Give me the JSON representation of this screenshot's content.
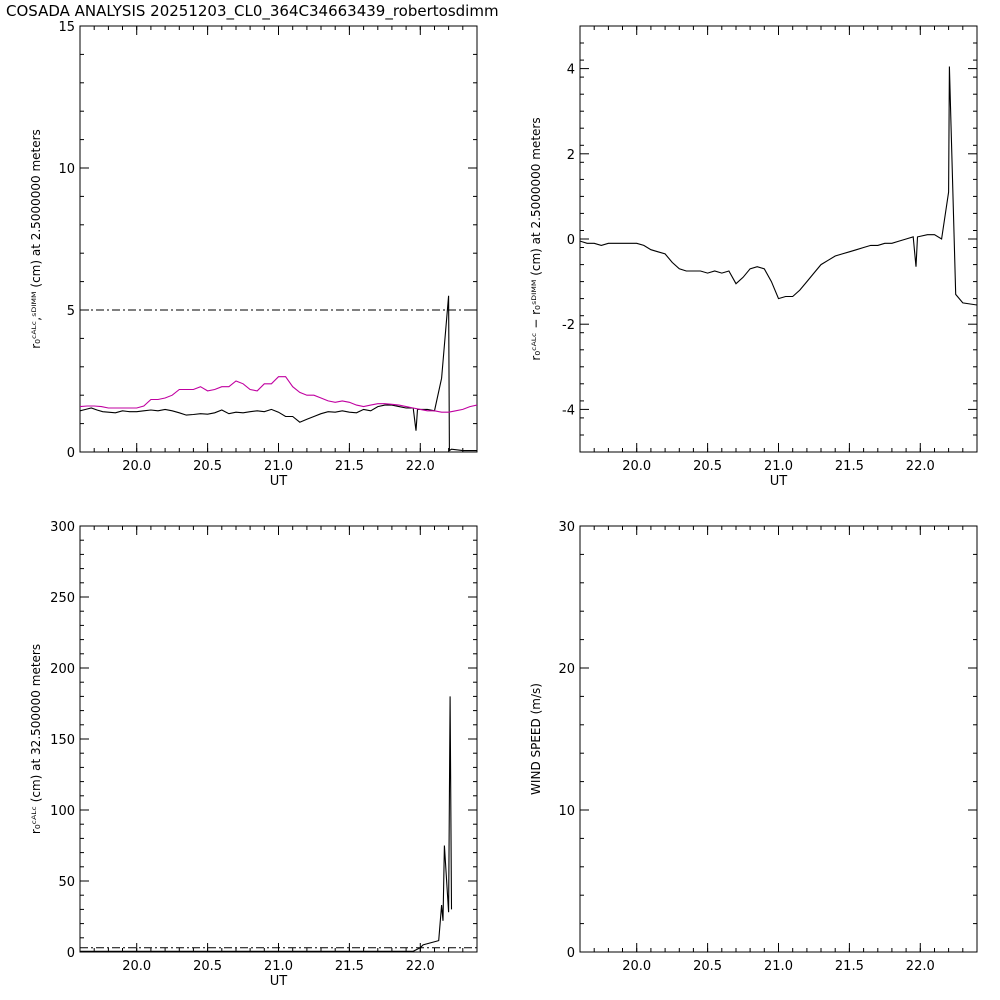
{
  "title": "COSADA ANALYSIS  20251203_CL0_364C34663439_robertosdimm",
  "chart_data": [
    {
      "type": "line",
      "xlabel": "UT",
      "ylabel": "r₀ᶜᴬᴸᶜ,ˢᴰᴵᴹᴹ (cm)  at  2.5000000 meters",
      "xlim": [
        19.6,
        22.4
      ],
      "ylim": [
        0,
        15
      ],
      "xticks": [
        "20.0",
        "20.5",
        "21.0",
        "21.5",
        "22.0"
      ],
      "yticks": [
        "0",
        "5",
        "10",
        "15"
      ],
      "reference_line": {
        "y": 5,
        "style": "dash-dot"
      },
      "series": [
        {
          "color": "#000000",
          "x": [
            19.6,
            19.64,
            19.68,
            19.72,
            19.76,
            19.8,
            19.85,
            19.9,
            19.95,
            20.0,
            20.05,
            20.1,
            20.15,
            20.2,
            20.25,
            20.3,
            20.35,
            20.4,
            20.45,
            20.5,
            20.55,
            20.6,
            20.65,
            20.7,
            20.75,
            20.8,
            20.85,
            20.9,
            20.95,
            21.0,
            21.05,
            21.1,
            21.15,
            21.2,
            21.25,
            21.3,
            21.35,
            21.4,
            21.45,
            21.5,
            21.55,
            21.6,
            21.65,
            21.7,
            21.75,
            21.8,
            21.85,
            21.9,
            21.95,
            21.97,
            21.98,
            22.05,
            22.1,
            22.15,
            22.2,
            22.205,
            22.22,
            22.3,
            22.4
          ],
          "y": [
            1.45,
            1.5,
            1.55,
            1.48,
            1.42,
            1.4,
            1.38,
            1.45,
            1.42,
            1.42,
            1.45,
            1.48,
            1.45,
            1.5,
            1.45,
            1.38,
            1.3,
            1.32,
            1.35,
            1.33,
            1.38,
            1.48,
            1.35,
            1.4,
            1.38,
            1.42,
            1.45,
            1.42,
            1.5,
            1.4,
            1.25,
            1.25,
            1.05,
            1.15,
            1.25,
            1.35,
            1.42,
            1.4,
            1.45,
            1.4,
            1.38,
            1.5,
            1.45,
            1.6,
            1.65,
            1.65,
            1.6,
            1.55,
            1.55,
            0.75,
            1.5,
            1.5,
            1.45,
            2.6,
            5.5,
            0.05,
            0.1,
            0.05,
            0.05
          ]
        },
        {
          "color": "#c000a0",
          "x": [
            19.6,
            19.65,
            19.7,
            19.75,
            19.8,
            19.85,
            19.9,
            19.95,
            20.0,
            20.05,
            20.1,
            20.15,
            20.2,
            20.25,
            20.3,
            20.35,
            20.4,
            20.45,
            20.5,
            20.55,
            20.6,
            20.65,
            20.7,
            20.75,
            20.8,
            20.85,
            20.9,
            20.95,
            21.0,
            21.05,
            21.1,
            21.15,
            21.2,
            21.25,
            21.3,
            21.35,
            21.4,
            21.45,
            21.5,
            21.55,
            21.6,
            21.65,
            21.7,
            21.75,
            21.8,
            21.85,
            21.9,
            21.95,
            22.0,
            22.05,
            22.1,
            22.15,
            22.2,
            22.25,
            22.3,
            22.35,
            22.4
          ],
          "y": [
            1.6,
            1.62,
            1.62,
            1.6,
            1.55,
            1.55,
            1.55,
            1.55,
            1.55,
            1.62,
            1.85,
            1.85,
            1.9,
            2.0,
            2.2,
            2.2,
            2.2,
            2.3,
            2.15,
            2.2,
            2.3,
            2.3,
            2.5,
            2.4,
            2.2,
            2.15,
            2.4,
            2.4,
            2.65,
            2.65,
            2.3,
            2.1,
            2.0,
            2.0,
            1.9,
            1.8,
            1.75,
            1.8,
            1.75,
            1.65,
            1.6,
            1.65,
            1.7,
            1.7,
            1.68,
            1.65,
            1.6,
            1.55,
            1.5,
            1.45,
            1.45,
            1.4,
            1.4,
            1.45,
            1.5,
            1.6,
            1.65
          ]
        }
      ]
    },
    {
      "type": "line",
      "xlabel": "UT",
      "ylabel": "r₀ᶜᴬᴸᶜ − r₀ˢᴰᴵᴹᴹ (cm)  at  2.5000000 meters",
      "xlim": [
        19.6,
        22.4
      ],
      "ylim": [
        -5,
        5
      ],
      "xticks": [
        "20.0",
        "20.5",
        "21.0",
        "21.5",
        "22.0"
      ],
      "yticks": [
        "-4",
        "-2",
        "0",
        "2",
        "4"
      ],
      "series": [
        {
          "color": "#000000",
          "x": [
            19.6,
            19.65,
            19.7,
            19.75,
            19.8,
            19.85,
            19.9,
            19.95,
            20.0,
            20.05,
            20.1,
            20.15,
            20.2,
            20.25,
            20.3,
            20.35,
            20.4,
            20.45,
            20.5,
            20.55,
            20.6,
            20.65,
            20.7,
            20.75,
            20.8,
            20.85,
            20.9,
            20.95,
            21.0,
            21.05,
            21.1,
            21.15,
            21.2,
            21.25,
            21.3,
            21.35,
            21.4,
            21.45,
            21.5,
            21.55,
            21.6,
            21.65,
            21.7,
            21.75,
            21.8,
            21.85,
            21.9,
            21.95,
            21.97,
            21.98,
            22.05,
            22.1,
            22.15,
            22.2,
            22.205,
            22.25,
            22.3,
            22.4
          ],
          "y": [
            -0.05,
            -0.1,
            -0.1,
            -0.15,
            -0.1,
            -0.1,
            -0.1,
            -0.1,
            -0.1,
            -0.15,
            -0.25,
            -0.3,
            -0.35,
            -0.55,
            -0.7,
            -0.75,
            -0.75,
            -0.75,
            -0.8,
            -0.75,
            -0.8,
            -0.75,
            -1.05,
            -0.9,
            -0.7,
            -0.65,
            -0.7,
            -1.0,
            -1.4,
            -1.35,
            -1.35,
            -1.2,
            -1.0,
            -0.8,
            -0.6,
            -0.5,
            -0.4,
            -0.35,
            -0.3,
            -0.25,
            -0.2,
            -0.15,
            -0.15,
            -0.1,
            -0.1,
            -0.05,
            0.0,
            0.05,
            -0.65,
            0.05,
            0.1,
            0.1,
            0.0,
            1.1,
            4.05,
            -1.3,
            -1.5,
            -1.55
          ]
        }
      ]
    },
    {
      "type": "line",
      "xlabel": "UT",
      "ylabel": "r₀ᶜᴬᴸᶜ (cm)  at  32.500000 meters",
      "xlim": [
        19.6,
        22.4
      ],
      "ylim": [
        0,
        300
      ],
      "xticks": [
        "20.0",
        "20.5",
        "21.0",
        "21.5",
        "22.0"
      ],
      "yticks": [
        "0",
        "50",
        "100",
        "150",
        "200",
        "250",
        "300"
      ],
      "reference_line": {
        "y": 3,
        "style": "dash-dot"
      },
      "series": [
        {
          "color": "#000000",
          "x": [
            19.6,
            20.0,
            20.5,
            21.0,
            21.5,
            21.95,
            22.0,
            22.02,
            22.13,
            22.15,
            22.16,
            22.17,
            22.2,
            22.21,
            22.22
          ],
          "y": [
            0.5,
            0.5,
            0.5,
            0.5,
            0.5,
            0.5,
            3,
            5,
            8,
            33,
            22,
            75,
            28,
            180,
            30
          ]
        }
      ]
    },
    {
      "type": "line",
      "xlabel": "",
      "ylabel": "WIND SPEED (m/s)",
      "xlim": [
        19.6,
        22.4
      ],
      "ylim": [
        0,
        30
      ],
      "xticks": [
        "20.0",
        "20.5",
        "21.0",
        "21.5",
        "22.0"
      ],
      "yticks": [
        "0",
        "10",
        "20",
        "30"
      ],
      "series": []
    }
  ]
}
